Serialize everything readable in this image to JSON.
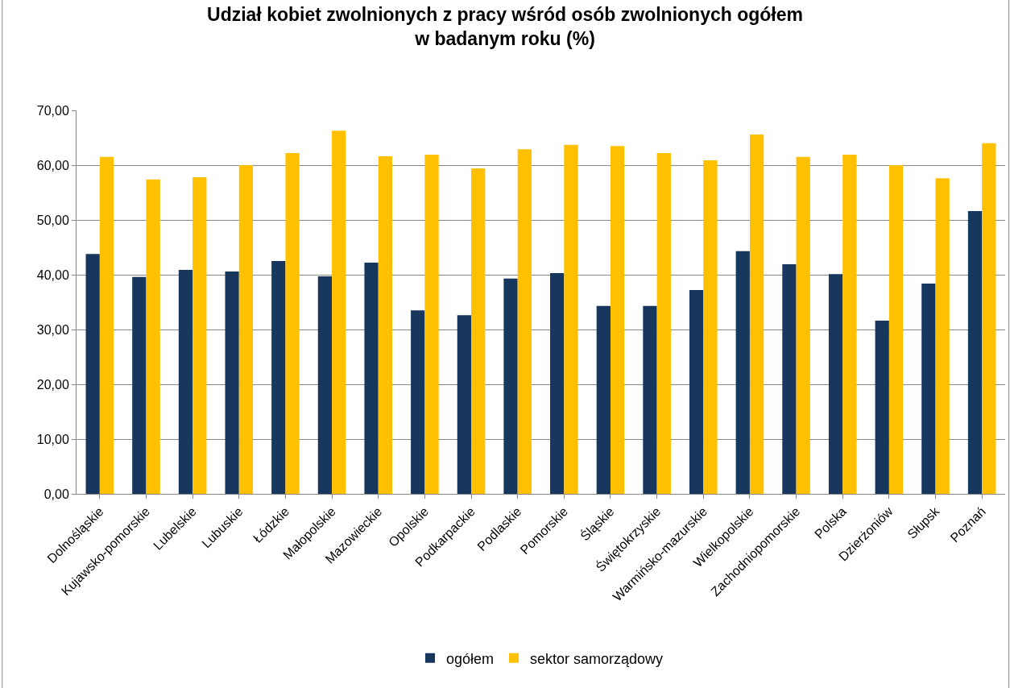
{
  "chart_data": {
    "type": "bar",
    "title": "Udział kobiet zwolnionych z pracy wśród osób zwolnionych ogółem\nw badanym roku (%)",
    "categories": [
      "Dolnośląskie",
      "Kujawsko-pomorskie",
      "Lubelskie",
      "Lubuskie",
      "Łódzkie",
      "Małopolskie",
      "Mazowieckie",
      "Opolskie",
      "Podkarpackie",
      "Podlaskie",
      "Pomorskie",
      "Śląskie",
      "Świętokrzyskie",
      "Warmińsko-mazurskie",
      "Wielkopolskie",
      "Zachodniopomorskie",
      "Polska",
      "Dzierżoniów",
      "Słupsk",
      "Poznań"
    ],
    "series": [
      {
        "name": "ogółem",
        "color": "#17375e",
        "values": [
          43.8,
          39.6,
          40.9,
          40.6,
          42.5,
          39.7,
          42.2,
          33.5,
          32.6,
          39.3,
          40.3,
          34.3,
          34.3,
          37.2,
          44.3,
          41.9,
          40.1,
          31.6,
          38.4,
          51.6
        ]
      },
      {
        "name": "sektor samorządowy",
        "color": "#ffc000",
        "values": [
          61.5,
          57.4,
          57.8,
          60.0,
          62.2,
          66.3,
          61.6,
          61.9,
          59.4,
          62.9,
          63.7,
          63.5,
          62.2,
          60.9,
          65.6,
          61.5,
          61.9,
          60.0,
          57.6,
          64.0
        ]
      }
    ],
    "ylim": [
      0,
      70
    ],
    "yticks": [
      {
        "value": 0,
        "label": "0,00"
      },
      {
        "value": 10,
        "label": "10,00"
      },
      {
        "value": 20,
        "label": "20,00"
      },
      {
        "value": 30,
        "label": "30,00"
      },
      {
        "value": 40,
        "label": "40,00"
      },
      {
        "value": 50,
        "label": "50,00"
      },
      {
        "value": 60,
        "label": "60,00"
      },
      {
        "value": 70,
        "label": "70,00"
      }
    ],
    "grid": "y",
    "legend": "bottom"
  }
}
